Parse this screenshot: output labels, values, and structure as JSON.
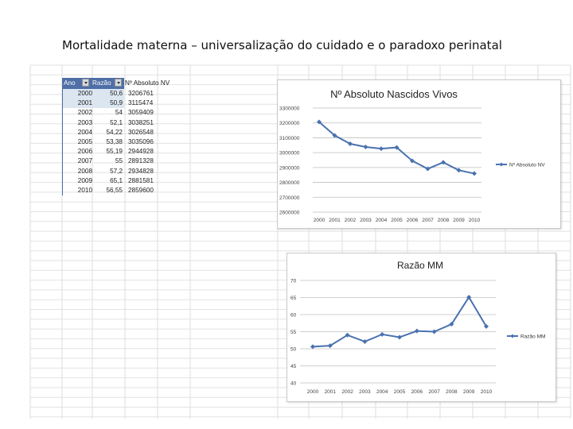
{
  "slide": {
    "title": "Mortalidade materna – universalização do cuidado e o paradoxo perinatal"
  },
  "table": {
    "headers": [
      "Ano",
      "Razão",
      "Nº Absoluto NV"
    ],
    "rows": [
      [
        "2000",
        "50,6",
        "3206761"
      ],
      [
        "2001",
        "50,9",
        "3115474"
      ],
      [
        "2002",
        "54",
        "3059409"
      ],
      [
        "2003",
        "52,1",
        "3038251"
      ],
      [
        "2004",
        "54,22",
        "3026548"
      ],
      [
        "2005",
        "53,38",
        "3035096"
      ],
      [
        "2006",
        "55,19",
        "2944928"
      ],
      [
        "2007",
        "55",
        "2891328"
      ],
      [
        "2008",
        "57,2",
        "2934828"
      ],
      [
        "2009",
        "65,1",
        "2881581"
      ],
      [
        "2010",
        "56,55",
        "2859600"
      ]
    ],
    "header_color": "#4f6fa6",
    "highlight_color": "#dce6f1"
  },
  "chart_data": [
    {
      "type": "line",
      "title": "Nº Absoluto Nascidos Vivos",
      "xlabel": "",
      "ylabel": "",
      "categories": [
        "2000",
        "2001",
        "2002",
        "2003",
        "2004",
        "2005",
        "2006",
        "2007",
        "2008",
        "2009",
        "2010"
      ],
      "series": [
        {
          "name": "Nº Absoluto NV",
          "color": "#4a72b0",
          "values": [
            3206761,
            3115474,
            3059409,
            3038251,
            3026548,
            3035096,
            2944928,
            2891328,
            2934828,
            2881581,
            2859600
          ]
        }
      ],
      "ylim": [
        2600000,
        3300000
      ],
      "yticks": [
        2600000,
        2700000,
        2800000,
        2900000,
        3000000,
        3100000,
        3200000,
        3300000
      ],
      "yticklabels": [
        "2600000",
        "2700000",
        "2800000",
        "2900000",
        "3000000",
        "3100000",
        "3200000",
        "3300000"
      ],
      "xticklabels": [
        "2000",
        "2001",
        "2002",
        "2003",
        "2004",
        "2005",
        "2006",
        "2007",
        "2008",
        "2009",
        "2010"
      ],
      "grid": true,
      "legend": "right"
    },
    {
      "type": "line",
      "title": "Razão MM",
      "xlabel": "",
      "ylabel": "",
      "categories": [
        "2000",
        "2001",
        "2002",
        "2003",
        "2004",
        "2005",
        "2006",
        "2007",
        "2008",
        "2009",
        "2010"
      ],
      "series": [
        {
          "name": "Razão MM",
          "color": "#4a72b0",
          "values": [
            50.6,
            50.9,
            54,
            52.1,
            54.22,
            53.38,
            55.19,
            55,
            57.2,
            65.1,
            56.55
          ]
        }
      ],
      "ylim": [
        40,
        70
      ],
      "yticks": [
        40,
        45,
        50,
        55,
        60,
        65,
        70
      ],
      "yticklabels": [
        "40",
        "45",
        "50",
        "55",
        "60",
        "65",
        "70"
      ],
      "xticklabels": [
        "2000",
        "2001",
        "2002",
        "2003",
        "2004",
        "2005",
        "2006",
        "2007",
        "2008",
        "2009",
        "2010"
      ],
      "grid": true,
      "legend": "right"
    }
  ]
}
